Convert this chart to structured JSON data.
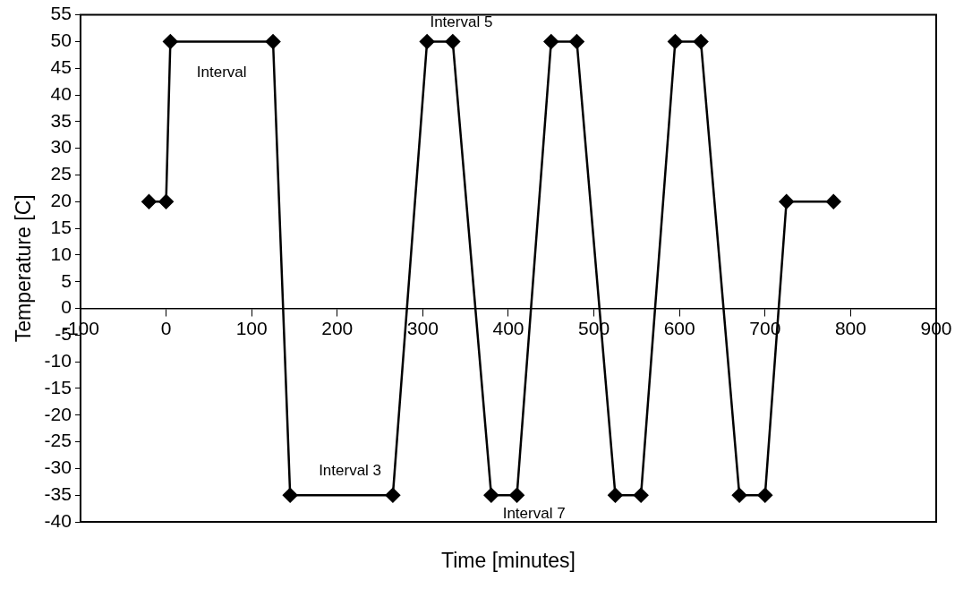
{
  "chart_data": {
    "type": "line",
    "xlabel": "Time [minutes]",
    "ylabel": "Temperature [C]",
    "x": [
      -20,
      0,
      5,
      125,
      145,
      265,
      305,
      335,
      380,
      410,
      450,
      480,
      525,
      555,
      595,
      625,
      670,
      700,
      725,
      780
    ],
    "series": [
      {
        "color": "#000000",
        "values": [
          20,
          20,
          50,
          50,
          -35,
          -35,
          50,
          50,
          -35,
          -35,
          50,
          50,
          -35,
          -35,
          50,
          50,
          -35,
          -35,
          20,
          20
        ]
      }
    ],
    "xlim": [
      -100,
      900
    ],
    "xticks": [
      -100,
      0,
      100,
      200,
      300,
      400,
      500,
      600,
      700,
      800,
      900
    ],
    "ylim": [
      -40,
      55
    ],
    "yticks": [
      -40,
      -35,
      -30,
      -25,
      -20,
      -15,
      -10,
      -5,
      0,
      5,
      10,
      15,
      20,
      25,
      30,
      35,
      40,
      45,
      50,
      55
    ],
    "grid": false,
    "legend": false,
    "marker": "diamond",
    "line_style": "solid",
    "annotations": [
      "Interval",
      "Interval 5",
      "Interval 3",
      "Interval 7"
    ]
  }
}
